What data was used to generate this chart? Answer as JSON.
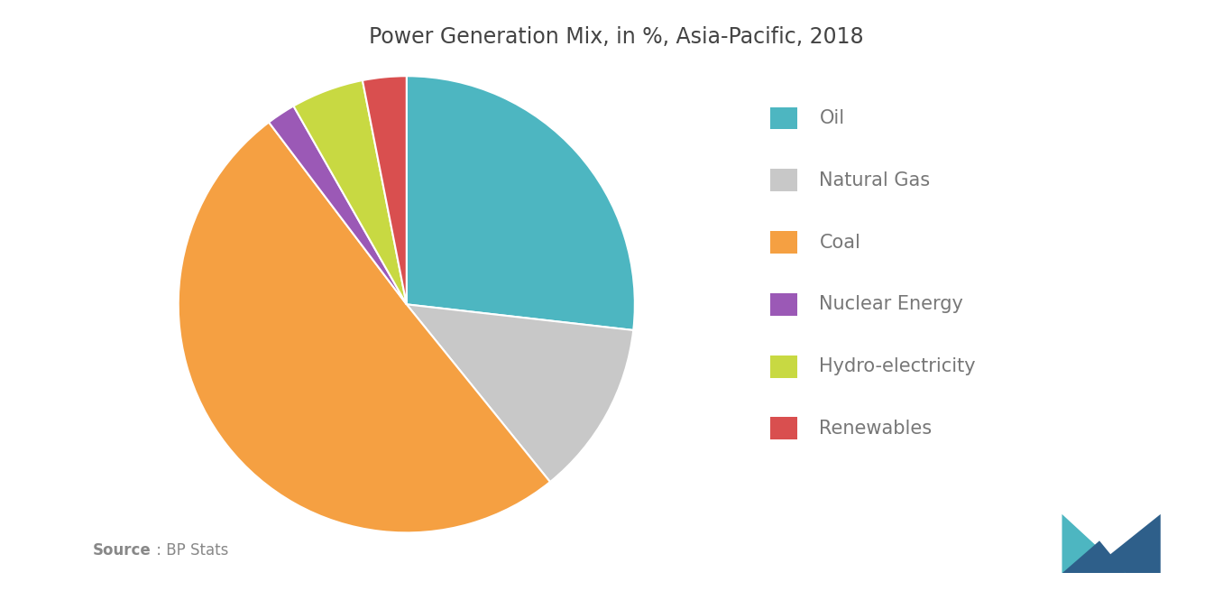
{
  "title": "Power Generation Mix, in %, Asia-Pacific, 2018",
  "title_fontsize": 17,
  "title_color": "#444444",
  "labels": [
    "Oil",
    "Natural Gas",
    "Coal",
    "Nuclear Energy",
    "Hydro-electricity",
    "Renewables"
  ],
  "values": [
    26,
    12,
    49,
    2,
    5,
    3
  ],
  "colors": [
    "#4DB6C1",
    "#C8C8C8",
    "#F5A042",
    "#9B59B6",
    "#C8D942",
    "#D94F4F"
  ],
  "legend_fontsize": 15,
  "legend_text_color": "#777777",
  "background_color": "#FFFFFF",
  "start_angle": 90,
  "logo_color1": "#4DB6C1",
  "logo_color2": "#2E5F8A"
}
